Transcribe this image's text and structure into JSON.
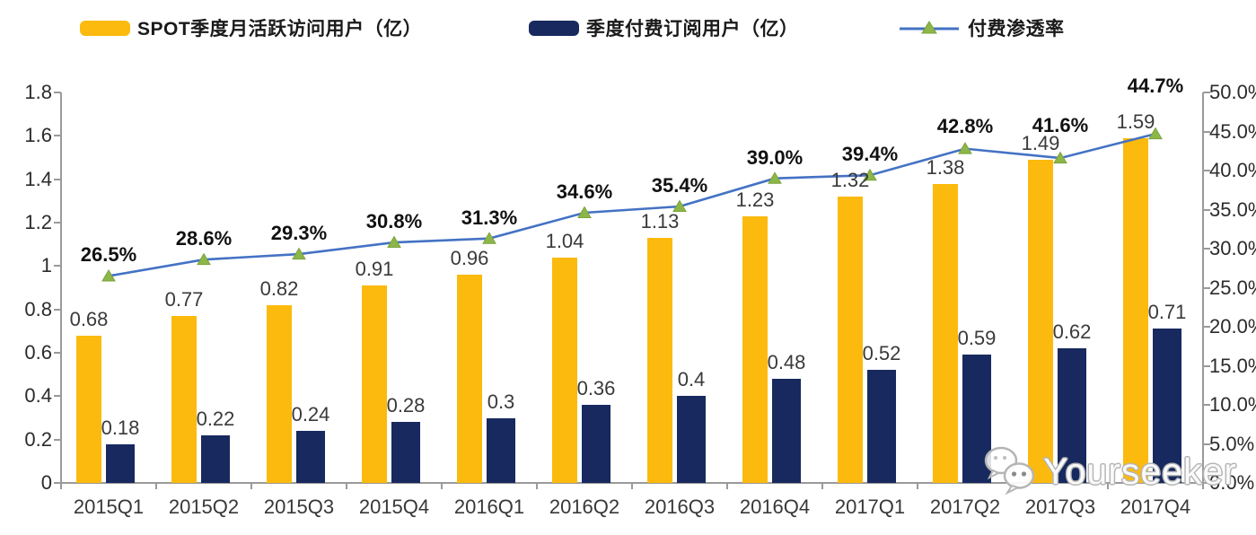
{
  "legend": {
    "items": [
      {
        "label": "SPOT季度月活跃访问用户（亿）",
        "swatch": "bar",
        "color": "#FBBA0D"
      },
      {
        "label": "季度付费订阅用户（亿）",
        "swatch": "bar",
        "color": "#17295E"
      },
      {
        "label": "付费渗透率",
        "swatch": "line-with-triangle-marker",
        "color": "#4472C4",
        "marker_color": "#8DB648"
      }
    ]
  },
  "watermark": {
    "text": "Yourseeker",
    "icon": "wechat-icon"
  },
  "colors": {
    "mau_bar": "#FBBA0D",
    "subs_bar": "#17295E",
    "line": "#4472C4",
    "marker": "#8DB648",
    "marker_stroke": "#7BA33C",
    "axis": "#9A9A9A",
    "background": "#FFFFFF"
  },
  "chart_data": {
    "type": "bar",
    "subtype": "combo dual-axis: grouped bars + line",
    "title": "",
    "xlabel": "",
    "ylabel": "",
    "grid": false,
    "legend_position": "top",
    "categories": [
      "2015Q1",
      "2015Q2",
      "2015Q3",
      "2015Q4",
      "2016Q1",
      "2016Q2",
      "2016Q3",
      "2016Q4",
      "2017Q1",
      "2017Q2",
      "2017Q3",
      "2017Q4"
    ],
    "series": [
      {
        "name": "SPOT季度月活跃访问用户（亿）",
        "type": "bar",
        "axis": "left",
        "color": "#FBBA0D",
        "values": [
          0.68,
          0.77,
          0.82,
          0.91,
          0.96,
          1.04,
          1.13,
          1.23,
          1.32,
          1.38,
          1.49,
          1.59
        ],
        "value_labels": [
          "0.68",
          "0.77",
          "0.82",
          "0.91",
          "0.96",
          "1.04",
          "1.13",
          "1.23",
          "1.32",
          "1.38",
          "1.49",
          "1.59"
        ]
      },
      {
        "name": "季度付费订阅用户（亿）",
        "type": "bar",
        "axis": "left",
        "color": "#17295E",
        "values": [
          0.18,
          0.22,
          0.24,
          0.28,
          0.3,
          0.36,
          0.4,
          0.48,
          0.52,
          0.59,
          0.62,
          0.71
        ],
        "value_labels": [
          "0.18",
          "0.22",
          "0.24",
          "0.28",
          "0.3",
          "0.36",
          "0.4",
          "0.48",
          "0.52",
          "0.59",
          "0.62",
          "0.71"
        ]
      },
      {
        "name": "付费渗透率",
        "type": "line",
        "axis": "right",
        "color": "#4472C4",
        "marker": "triangle",
        "marker_color": "#8DB648",
        "values": [
          26.5,
          28.6,
          29.3,
          30.8,
          31.3,
          34.6,
          35.4,
          39.0,
          39.4,
          42.8,
          41.6,
          44.7
        ],
        "value_labels": [
          "26.5%",
          "28.6%",
          "29.3%",
          "30.8%",
          "31.3%",
          "34.6%",
          "35.4%",
          "39.0%",
          "39.4%",
          "42.8%",
          "41.6%",
          "44.7%"
        ]
      }
    ],
    "left_axis": {
      "min": 0,
      "max": 1.8,
      "step": 0.2,
      "tick_labels": [
        "0",
        "0.2",
        "0.4",
        "0.6",
        "0.8",
        "1",
        "1.2",
        "1.4",
        "1.6",
        "1.8"
      ]
    },
    "right_axis": {
      "min": 0,
      "max": 50,
      "step": 5,
      "unit": "%",
      "tick_labels": [
        "0.0%",
        "5.0%",
        "10.0%",
        "15.0%",
        "20.0%",
        "25.0%",
        "30.0%",
        "35.0%",
        "40.0%",
        "45.0%",
        "50.0%"
      ]
    }
  }
}
